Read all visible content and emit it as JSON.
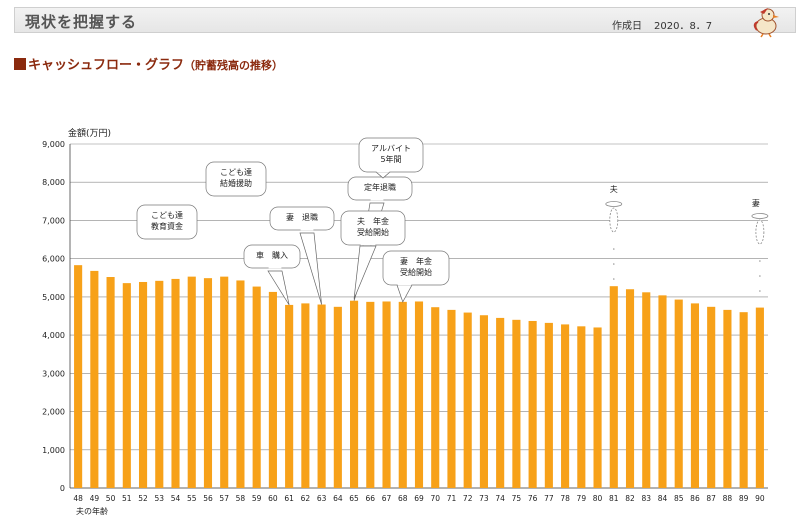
{
  "header": {
    "title": "現状を把握する",
    "date_label": "作成日",
    "date_value": "2020．8．7"
  },
  "section": {
    "title": "キャッシュフロー・グラフ",
    "subtitle": "（貯蓄残高の推移）"
  },
  "colors": {
    "bar": "#F7A119",
    "title": "#8B2A0E"
  },
  "chart_data": {
    "type": "bar",
    "ylabel": "金額(万円)",
    "xlabel": "夫の年齢",
    "ylim": [
      0,
      9000
    ],
    "yticks": [
      "0",
      "1,000",
      "2,000",
      "3,000",
      "4,000",
      "5,000",
      "6,000",
      "7,000",
      "8,000",
      "9,000"
    ],
    "grid": true,
    "categories": [
      "48",
      "49",
      "50",
      "51",
      "52",
      "53",
      "54",
      "55",
      "56",
      "57",
      "58",
      "59",
      "60",
      "61",
      "62",
      "63",
      "64",
      "65",
      "66",
      "67",
      "68",
      "69",
      "70",
      "71",
      "72",
      "73",
      "74",
      "75",
      "76",
      "77",
      "78",
      "79",
      "80",
      "81",
      "82",
      "83",
      "84",
      "85",
      "86",
      "87",
      "88",
      "89",
      "90"
    ],
    "values": [
      5830,
      5680,
      5520,
      5360,
      5390,
      5420,
      5470,
      5530,
      5490,
      5530,
      5430,
      5270,
      5130,
      4790,
      4830,
      4800,
      4740,
      4900,
      4870,
      4880,
      4870,
      4880,
      4730,
      4660,
      4590,
      4520,
      4450,
      4400,
      4370,
      4320,
      4280,
      4230,
      4200,
      5280,
      5200,
      5120,
      5040,
      4930,
      4830,
      4740,
      4660,
      4600,
      4720
    ],
    "annotations": [
      {
        "index": 5,
        "lines": [
          "こども達",
          "教育資金"
        ]
      },
      {
        "index": 8,
        "lines": [
          "こども達",
          "結婚援助"
        ]
      },
      {
        "index": 12,
        "lines": [
          "車　購入"
        ]
      },
      {
        "index": 15,
        "lines": [
          "妻　退職"
        ]
      },
      {
        "index": 17,
        "lines": [
          "定年退職"
        ]
      },
      {
        "index": 18,
        "lines": [
          "アルバイト",
          "5年間"
        ]
      },
      {
        "index": 17,
        "lines": [
          "夫　年金",
          "受給開始"
        ]
      },
      {
        "index": 20,
        "lines": [
          "妻　年金",
          "受給開始"
        ]
      }
    ],
    "markers": [
      {
        "index": 33,
        "label": "夫"
      },
      {
        "index": 42,
        "label": "妻"
      }
    ]
  }
}
